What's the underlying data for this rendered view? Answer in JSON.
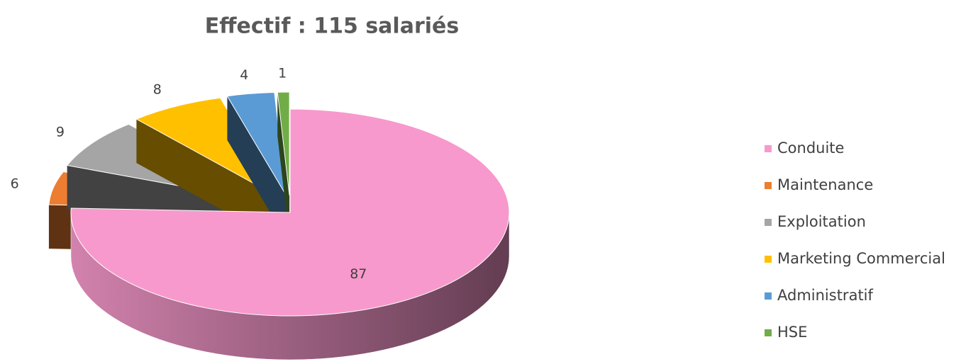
{
  "chart_data": {
    "type": "pie",
    "title": "Effectif : 115 salariés",
    "categories": [
      "Conduite",
      "Maintenance",
      "Exploitation",
      "Marketing Commercial",
      "Administratif",
      "HSE"
    ],
    "values": [
      87,
      6,
      9,
      8,
      4,
      1
    ],
    "colors": [
      "#f799cc",
      "#ed7d31",
      "#a5a5a5",
      "#ffc000",
      "#5b9bd5",
      "#70ad47"
    ],
    "legend": "right"
  }
}
